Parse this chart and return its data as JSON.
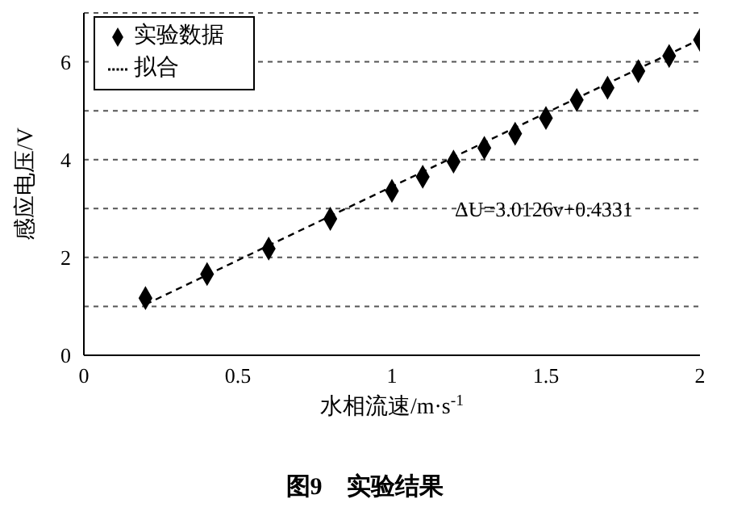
{
  "chart_data": {
    "type": "scatter",
    "title": "图9　实验结果",
    "xlabel": "水相流速/m·s$^{-1}$",
    "ylabel": "感应电压/V",
    "series": [
      {
        "name": "实验数据",
        "type": "scatter",
        "color": "#000000",
        "marker": "diamond",
        "x": [
          0.2,
          0.4,
          0.6,
          0.8,
          1.0,
          1.1,
          1.2,
          1.3,
          1.4,
          1.5,
          1.6,
          1.7,
          1.8,
          1.9,
          2.0
        ],
        "values": [
          1.17,
          1.66,
          2.18,
          2.79,
          3.36,
          3.65,
          3.96,
          4.24,
          4.53,
          4.85,
          5.22,
          5.47,
          5.81,
          6.12,
          6.45
        ]
      },
      {
        "name": "拟合",
        "type": "line",
        "color": "#000000",
        "line_style": "dashed",
        "marker": "none",
        "x": [
          0.2,
          2.0
        ],
        "values": [
          1.04,
          6.46
        ]
      }
    ],
    "annotations": [
      "ΔU=3.0126v+0.4331"
    ],
    "xlim": [
      0,
      2
    ],
    "xticks": [
      0,
      0.5,
      1,
      1.5,
      2
    ],
    "ylim": [
      0,
      7
    ],
    "yticks": [
      0,
      {
        "value": 1,
        "label": null
      },
      2,
      {
        "value": 3,
        "label": null
      },
      4,
      {
        "value": 5,
        "label": null
      },
      6
    ],
    "grid": "y",
    "legend": "top left"
  }
}
